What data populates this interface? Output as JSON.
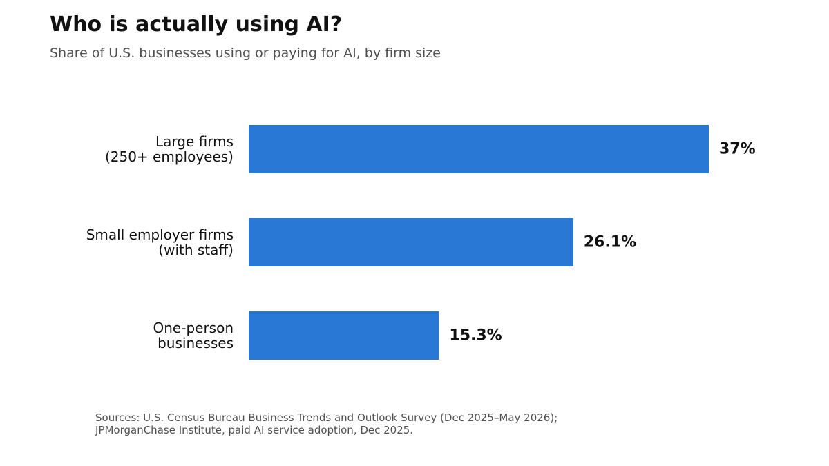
{
  "chart_data": {
    "type": "bar",
    "orientation": "horizontal",
    "title": "Who is actually using AI?",
    "subtitle": "Share of U.S. businesses using or paying for AI, by firm size",
    "categories": [
      [
        "Large firms",
        "(250+ employees)"
      ],
      [
        "Small employer firms",
        "(with staff)"
      ],
      [
        "One-person",
        "businesses"
      ]
    ],
    "values": [
      37,
      26.1,
      15.3
    ],
    "value_labels": [
      "37%",
      "26.1%",
      "15.3%"
    ],
    "xlim": [
      0,
      37
    ],
    "grid": false,
    "legend": "none",
    "bar_color": "#2a78d6",
    "source_lines": [
      "Sources: U.S. Census Bureau Business Trends and Outlook Survey (Dec 2025–May 2026);",
      "JPMorganChase Institute, paid AI service adoption, Dec 2025."
    ]
  }
}
